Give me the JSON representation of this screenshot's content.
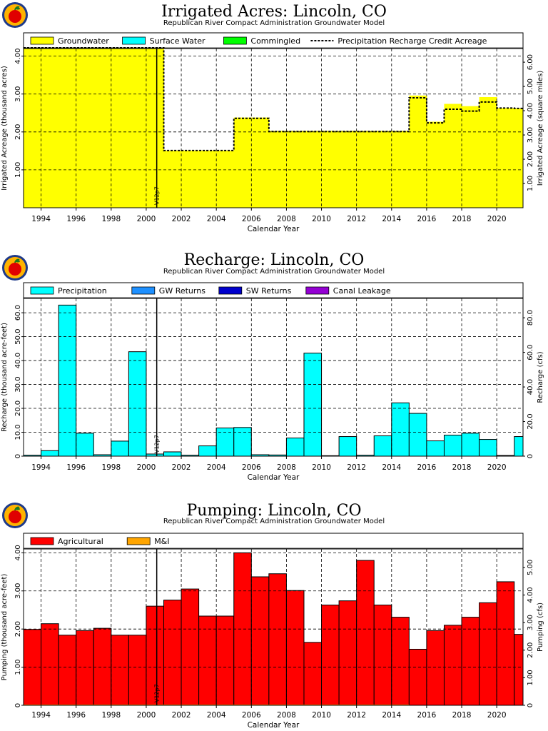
{
  "chart_data": [
    {
      "type": "area",
      "title": "Irrigated Acres: Lincoln, CO",
      "subtitle": "Republican River Compact Administration Groundwater Model",
      "xlabel": "Calendar Year",
      "ylabel": "Irrigated Acreage (thousand acres)",
      "ylabel_right": "Irrigated Acreage (square miles)",
      "xlim": [
        1993,
        2021.5
      ],
      "ylim": [
        0,
        4.2
      ],
      "ylim_right": [
        0,
        6.5625
      ],
      "grid": true,
      "legend_position": "top",
      "x_ticks": [
        "1994",
        "1996",
        "1998",
        "2000",
        "2002",
        "2004",
        "2006",
        "2008",
        "2010",
        "2012",
        "2014",
        "2016",
        "2018",
        "2020"
      ],
      "y_ticks": [
        "1.00",
        "2.00",
        "3.00",
        "4.00"
      ],
      "y_ticks_right": [
        "1.00",
        "2.00",
        "3.00",
        "4.00",
        "5.00",
        "6.00"
      ],
      "marker_label": "V12p7",
      "marker_x": 2000.6,
      "legend": [
        {
          "name": "Groundwater",
          "color": "#ffff00",
          "style": "box"
        },
        {
          "name": "Surface Water",
          "color": "#00ffff",
          "style": "box"
        },
        {
          "name": "Commingled",
          "color": "#00ff00",
          "style": "box"
        },
        {
          "name": "Precipitation Recharge Credit Acreage",
          "color": "#000000",
          "style": "dashed"
        }
      ],
      "series": [
        {
          "name": "Groundwater",
          "color": "#ffff00",
          "x": [
            1993,
            1994,
            1995,
            1996,
            1997,
            1998,
            1999,
            2000,
            2001,
            2002,
            2003,
            2004,
            2005,
            2006,
            2007,
            2008,
            2009,
            2010,
            2011,
            2012,
            2013,
            2014,
            2015,
            2016,
            2017,
            2018,
            2019,
            2020,
            2021
          ],
          "values": [
            4.19,
            4.19,
            4.19,
            4.19,
            4.19,
            4.19,
            4.19,
            4.19,
            1.51,
            1.51,
            1.51,
            1.51,
            2.38,
            2.38,
            2.03,
            2.03,
            2.03,
            2.03,
            2.03,
            2.03,
            2.03,
            2.03,
            2.96,
            2.27,
            2.74,
            2.68,
            2.92,
            2.63,
            2.62
          ]
        },
        {
          "name": "Precipitation Recharge Credit Acreage",
          "color": "#000000",
          "x": [
            1993,
            1994,
            1995,
            1996,
            1997,
            1998,
            1999,
            2000,
            2001,
            2002,
            2003,
            2004,
            2005,
            2006,
            2007,
            2008,
            2009,
            2010,
            2011,
            2012,
            2013,
            2014,
            2015,
            2016,
            2017,
            2018,
            2019,
            2020,
            2021
          ],
          "values": [
            4.22,
            4.22,
            4.22,
            4.22,
            4.22,
            4.22,
            4.22,
            4.22,
            1.51,
            1.51,
            1.51,
            1.51,
            2.36,
            2.36,
            2.01,
            2.01,
            2.01,
            2.01,
            2.01,
            2.01,
            2.01,
            2.01,
            2.9,
            2.24,
            2.6,
            2.55,
            2.79,
            2.63,
            2.62
          ]
        }
      ]
    },
    {
      "type": "bar",
      "title": "Recharge: Lincoln, CO",
      "subtitle": "Republican River Compact Administration Groundwater Model",
      "xlabel": "Calendar Year",
      "ylabel": "Recharge (thousand acre-feet)",
      "ylabel_right": "Recharge (cfs)",
      "xlim": [
        1993,
        2021.5
      ],
      "ylim": [
        0,
        66
      ],
      "ylim_right": [
        0,
        91.2
      ],
      "grid": true,
      "legend_position": "top",
      "x_ticks": [
        "1994",
        "1996",
        "1998",
        "2000",
        "2002",
        "2004",
        "2006",
        "2008",
        "2010",
        "2012",
        "2014",
        "2016",
        "2018",
        "2020"
      ],
      "y_ticks": [
        "0",
        "10.0",
        "20.0",
        "30.0",
        "40.0",
        "50.0",
        "60.0"
      ],
      "y_ticks_right": [
        "0",
        "20.0",
        "40.0",
        "60.0",
        "80.0"
      ],
      "marker_label": "V12p7",
      "marker_x": 2000.6,
      "legend": [
        {
          "name": "Precipitation",
          "color": "#00ffff",
          "style": "box"
        },
        {
          "name": "GW Returns",
          "color": "#1e90ff",
          "style": "box"
        },
        {
          "name": "SW Returns",
          "color": "#0000cd",
          "style": "box"
        },
        {
          "name": "Canal Leakage",
          "color": "#9400d3",
          "style": "box"
        }
      ],
      "series": [
        {
          "name": "Precipitation",
          "color": "#00ffff",
          "x": [
            1993,
            1994,
            1995,
            1996,
            1997,
            1998,
            1999,
            2000,
            2001,
            2002,
            2003,
            2004,
            2005,
            2006,
            2007,
            2008,
            2009,
            2010,
            2011,
            2012,
            2013,
            2014,
            2015,
            2016,
            2017,
            2018,
            2019,
            2020,
            2021
          ],
          "values": [
            0.4,
            2.3,
            63.2,
            9.6,
            0.6,
            6.3,
            43.7,
            0.9,
            1.8,
            0.4,
            4.3,
            11.8,
            12.0,
            0.6,
            0.5,
            7.6,
            43.1,
            0.2,
            8.2,
            0.4,
            8.5,
            22.3,
            17.9,
            6.4,
            8.8,
            9.6,
            7.0,
            0.3,
            8.2
          ]
        }
      ]
    },
    {
      "type": "bar",
      "title": "Pumping: Lincoln, CO",
      "subtitle": "Republican River Compact Administration Groundwater Model",
      "xlabel": "Calendar Year",
      "ylabel": "Pumping (thousand acre-feet)",
      "ylabel_right": "Pumping (cfs)",
      "xlim": [
        1993,
        2021.5
      ],
      "ylim": [
        0,
        4.1
      ],
      "ylim_right": [
        0,
        5.67
      ],
      "grid": true,
      "legend_position": "top",
      "x_ticks": [
        "1994",
        "1996",
        "1998",
        "2000",
        "2002",
        "2004",
        "2006",
        "2008",
        "2010",
        "2012",
        "2014",
        "2016",
        "2018",
        "2020"
      ],
      "y_ticks": [
        "0",
        "1.00",
        "2.00",
        "3.00",
        "4.00"
      ],
      "y_ticks_right": [
        "0",
        "1.00",
        "2.00",
        "3.00",
        "4.00",
        "5.00"
      ],
      "marker_label": "V12p7",
      "marker_x": 2000.6,
      "legend": [
        {
          "name": "Agricultural",
          "color": "#ff0000",
          "style": "box"
        },
        {
          "name": "M&I",
          "color": "#ffa500",
          "style": "box"
        }
      ],
      "series": [
        {
          "name": "Agricultural",
          "color": "#ff0000",
          "x": [
            1993,
            1994,
            1995,
            1996,
            1997,
            1998,
            1999,
            2000,
            2001,
            2002,
            2003,
            2004,
            2005,
            2006,
            2007,
            2008,
            2009,
            2010,
            2011,
            2012,
            2013,
            2014,
            2015,
            2016,
            2017,
            2018,
            2019,
            2020,
            2021
          ],
          "values": [
            1.99,
            2.14,
            1.84,
            1.96,
            2.02,
            1.84,
            1.84,
            2.6,
            2.76,
            3.05,
            2.34,
            2.34,
            4.0,
            3.37,
            3.45,
            3.01,
            1.65,
            2.63,
            2.74,
            3.8,
            2.63,
            2.31,
            1.47,
            1.96,
            2.1,
            2.31,
            2.69,
            3.24,
            1.86
          ]
        },
        {
          "name": "M&I",
          "color": "#ffa500",
          "x": [
            1993,
            1994,
            1995,
            1996,
            1997,
            1998,
            1999,
            2000,
            2001,
            2002,
            2003,
            2004,
            2005,
            2006,
            2007,
            2008,
            2009,
            2010,
            2011,
            2012,
            2013,
            2014,
            2015,
            2016,
            2017,
            2018,
            2019,
            2020,
            2021
          ],
          "values": [
            0.02,
            0.02,
            0.02,
            0.02,
            0.02,
            0.02,
            0.02,
            0.02,
            0.02,
            0.02,
            0.02,
            0.02,
            0.02,
            0.02,
            0.02,
            0.02,
            0.02,
            0.02,
            0.02,
            0.02,
            0.02,
            0.02,
            0,
            0,
            0,
            0,
            0,
            0,
            0
          ]
        }
      ]
    }
  ]
}
